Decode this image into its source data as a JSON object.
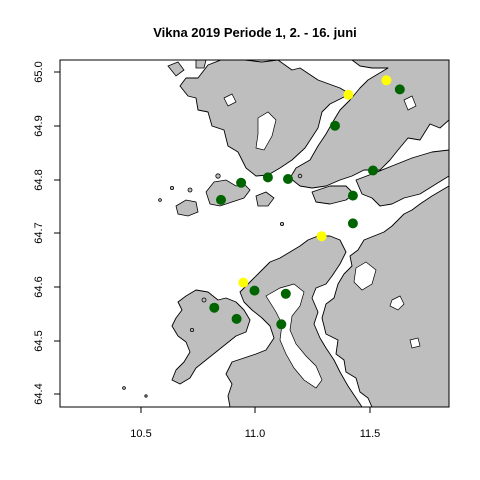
{
  "chart_data": {
    "type": "map",
    "title": "Vikna 2019 Periode 1, 2. - 16. juni",
    "xlim": [
      10.12,
      11.86
    ],
    "ylim": [
      64.37,
      65.02
    ],
    "x_ticks": [
      "10.5",
      "11.0",
      "11.5"
    ],
    "y_ticks": [
      "64.4",
      "64.5",
      "64.6",
      "64.7",
      "64.8",
      "64.9",
      "65.0"
    ],
    "colors": {
      "land": "#bebebe",
      "water": "#ffffff",
      "green": "#006400",
      "yellow": "#ffff00"
    },
    "points": [
      {
        "x": 11.41,
        "y": 64.955,
        "color": "yellow"
      },
      {
        "x": 11.58,
        "y": 64.982,
        "color": "yellow"
      },
      {
        "x": 11.29,
        "y": 64.69,
        "color": "yellow"
      },
      {
        "x": 10.94,
        "y": 64.603,
        "color": "yellow"
      },
      {
        "x": 11.64,
        "y": 64.965,
        "color": "green"
      },
      {
        "x": 11.35,
        "y": 64.897,
        "color": "green"
      },
      {
        "x": 11.52,
        "y": 64.813,
        "color": "green"
      },
      {
        "x": 11.43,
        "y": 64.766,
        "color": "green"
      },
      {
        "x": 11.43,
        "y": 64.714,
        "color": "green"
      },
      {
        "x": 11.14,
        "y": 64.797,
        "color": "green"
      },
      {
        "x": 11.05,
        "y": 64.8,
        "color": "green"
      },
      {
        "x": 10.93,
        "y": 64.79,
        "color": "green"
      },
      {
        "x": 10.84,
        "y": 64.758,
        "color": "green"
      },
      {
        "x": 10.99,
        "y": 64.588,
        "color": "green"
      },
      {
        "x": 11.13,
        "y": 64.582,
        "color": "green"
      },
      {
        "x": 10.81,
        "y": 64.556,
        "color": "green"
      },
      {
        "x": 10.91,
        "y": 64.535,
        "color": "green"
      },
      {
        "x": 11.11,
        "y": 64.525,
        "color": "green"
      }
    ]
  }
}
